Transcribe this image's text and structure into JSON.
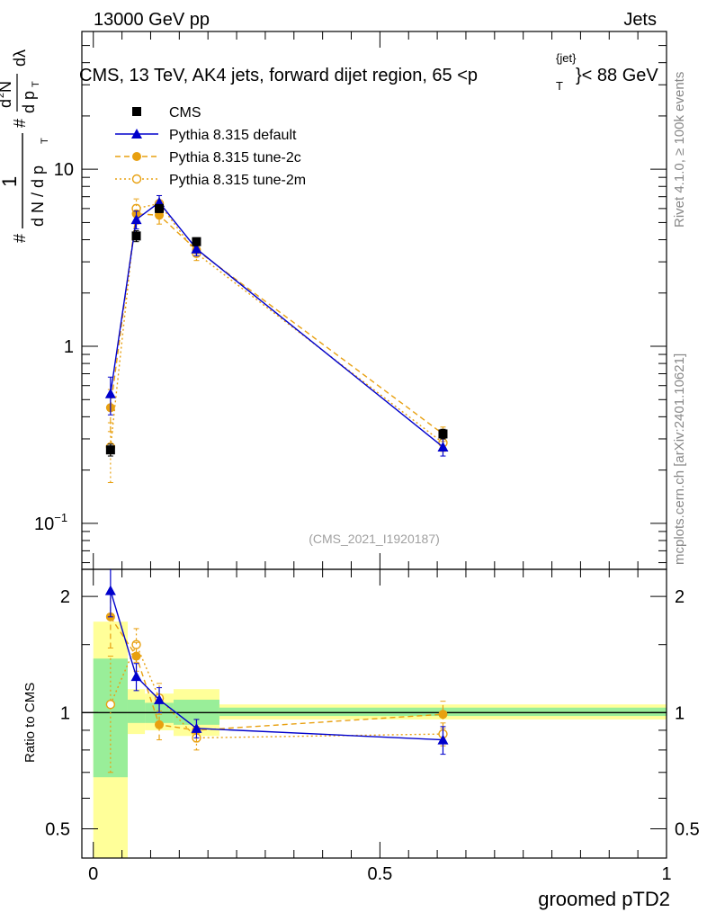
{
  "header": {
    "energy_label": "13000 GeV pp",
    "category_label": "Jets",
    "title_main": "CMS, 13 TeV, AK4 jets, forward dijet region, 65 <p",
    "title_sup": "{jet}",
    "title_sub": "T",
    "title_end": "}< 88 GeV"
  },
  "side_labels": {
    "rivet": "Rivet 4.1.0, ≥ 100k events",
    "mcplots": "mcplots.cern.ch [arXiv:2401.10621]"
  },
  "watermark": "(CMS_2021_I1920187)",
  "y_axis_label": {
    "frac_num": "1",
    "frac_den": "d N / d p",
    "frac_den_sub": "T",
    "hash": "#",
    "d2n_num": "d",
    "d2n_sup": "2",
    "d2n_n": "N",
    "d2n_den": "d p",
    "d2n_den_sub": "T",
    "dlambda": "dλ"
  },
  "ratio_axis_label": "Ratio to CMS",
  "x_axis_label": "groomed pTD2",
  "main_ticks": [
    {
      "value": 0.1,
      "base": "10",
      "exp": "−1"
    },
    {
      "value": 1,
      "base": "1",
      "exp": ""
    },
    {
      "value": 10,
      "base": "10",
      "exp": ""
    }
  ],
  "ratio_ticks": [
    {
      "value": 0.5,
      "label": "0.5"
    },
    {
      "value": 1,
      "label": "1"
    },
    {
      "value": 2,
      "label": "2"
    }
  ],
  "x_ticks": [
    {
      "value": 0,
      "label": "0"
    },
    {
      "value": 0.5,
      "label": "0.5"
    },
    {
      "value": 1,
      "label": "1"
    }
  ],
  "legend": [
    {
      "key": "cms",
      "label": "CMS"
    },
    {
      "key": "default",
      "label": "Pythia 8.315 default"
    },
    {
      "key": "tune2c",
      "label": "Pythia 8.315 tune-2c"
    },
    {
      "key": "tune2m",
      "label": "Pythia 8.315 tune-2m"
    }
  ],
  "chart_data": {
    "type": "line",
    "title": "CMS, 13 TeV, AK4 jets, forward dijet region, 65 < pT(jet) < 88 GeV",
    "xlabel": "groomed pTD2",
    "ylabel": "1/(dN/dpT) d2N/(dpT dλ)",
    "xlim": [
      -0.02,
      1.0
    ],
    "ylim": [
      0.055,
      60
    ],
    "yscale": "log",
    "bins": [
      [
        0,
        0.06
      ],
      [
        0.06,
        0.09
      ],
      [
        0.09,
        0.14
      ],
      [
        0.14,
        0.22
      ],
      [
        0.22,
        1.0
      ]
    ],
    "x": [
      0.03,
      0.075,
      0.115,
      0.18,
      0.61
    ],
    "series": [
      {
        "name": "CMS",
        "key": "cms",
        "color": "#000000",
        "values": [
          0.26,
          4.2,
          6.0,
          3.9,
          0.32
        ],
        "errors": [
          0.02,
          0.3,
          0.3,
          0.2,
          0.02
        ]
      },
      {
        "name": "Pythia 8.315 default",
        "key": "default",
        "color": "#0000cc",
        "values": [
          0.54,
          5.2,
          6.5,
          3.55,
          0.27
        ],
        "errors": [
          0.13,
          0.6,
          0.6,
          0.3,
          0.03
        ]
      },
      {
        "name": "Pythia 8.315 tune-2c",
        "key": "tune2c",
        "color": "#e8a010",
        "values": [
          0.45,
          5.6,
          5.5,
          3.5,
          0.32
        ],
        "errors": [
          0.12,
          0.7,
          0.6,
          0.3,
          0.03
        ]
      },
      {
        "name": "Pythia 8.315 tune-2m",
        "key": "tune2m",
        "color": "#e8a010",
        "values": [
          0.27,
          6.0,
          6.4,
          3.35,
          0.285
        ],
        "errors": [
          0.1,
          0.8,
          0.7,
          0.3,
          0.03
        ]
      }
    ],
    "ratio": {
      "ylabel": "Ratio to CMS",
      "ylim": [
        0.42,
        2.35
      ],
      "yscale": "log",
      "band_green": [
        [
          0.68,
          1.38
        ],
        [
          0.94,
          1.08
        ],
        [
          0.94,
          1.06
        ],
        [
          0.93,
          1.08
        ],
        [
          0.98,
          1.03
        ]
      ],
      "band_yellow": [
        [
          0.34,
          1.72
        ],
        [
          0.88,
          1.15
        ],
        [
          0.9,
          1.12
        ],
        [
          0.87,
          1.15
        ],
        [
          0.96,
          1.05
        ]
      ],
      "series": [
        {
          "key": "default",
          "values": [
            2.07,
            1.24,
            1.08,
            0.91,
            0.85
          ],
          "errors": [
            0.3,
            0.1,
            0.08,
            0.05,
            0.07
          ]
        },
        {
          "key": "tune2c",
          "values": [
            1.77,
            1.4,
            0.93,
            0.9,
            0.99
          ],
          "errors": [
            0.3,
            0.12,
            0.08,
            0.06,
            0.08
          ]
        },
        {
          "key": "tune2m",
          "values": [
            1.05,
            1.5,
            1.09,
            0.86,
            0.88
          ],
          "errors": [
            0.35,
            0.15,
            0.1,
            0.06,
            0.06
          ]
        }
      ]
    }
  }
}
